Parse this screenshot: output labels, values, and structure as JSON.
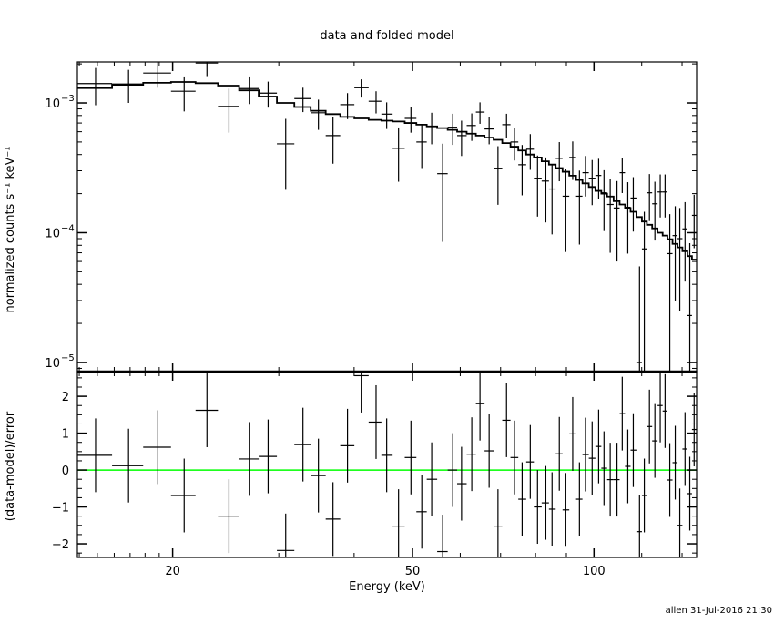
{
  "chart_data": {
    "type": "scatter",
    "title": "data and folded model",
    "xlabel": "Energy (keV)",
    "x_scale": "log",
    "xlim": [
      13.9,
      148
    ],
    "x_ticks": [
      20,
      50,
      100
    ],
    "x_tick_labels": [
      "20",
      "50",
      "100"
    ],
    "panels": [
      {
        "name": "spectrum",
        "ylabel": "normalized counts s⁻¹ keV⁻¹",
        "y_scale": "log",
        "ylim": [
          8.5e-06,
          0.00207
        ],
        "y_tick_labels": [
          {
            "v": 0.001,
            "base": "10",
            "exp": "−3"
          },
          {
            "v": 0.0001,
            "base": "10",
            "exp": "−4"
          },
          {
            "v": 1e-05,
            "base": "10",
            "exp": "−5"
          }
        ]
      },
      {
        "name": "residuals",
        "ylabel": "(data-model)/error",
        "y_scale": "linear",
        "ylim": [
          -2.37,
          2.67
        ],
        "y_ticks": [
          -2,
          -1,
          0,
          1,
          2
        ],
        "y_tick_labels": [
          "−2",
          "−1",
          "0",
          "1",
          "2"
        ],
        "zero_line_color": "#00ff00"
      }
    ],
    "energy": [
      14.9,
      16.9,
      18.9,
      20.9,
      22.8,
      24.8,
      26.8,
      28.8,
      30.8,
      32.9,
      34.9,
      36.9,
      39.0,
      41.1,
      43.5,
      45.3,
      47.4,
      49.7,
      51.8,
      53.8,
      56.1,
      58.3,
      60.3,
      62.7,
      64.7,
      67.0,
      69.3,
      71.6,
      73.8,
      76.0,
      78.4,
      80.6,
      83.2,
      85.2,
      87.6,
      89.8,
      92.2,
      94.6,
      96.8,
      99.3,
      101.8,
      103.9,
      106.4,
      109.2,
      111.4,
      113.8,
      116.2,
      119.0,
      121.2,
      123.6,
      126.2,
      128.8,
      131.2,
      133.6,
      136.4,
      138.8,
      141.6,
      144.2,
      146.6
    ],
    "data": [
      0.00141,
      0.0014,
      0.0017,
      0.00123,
      0.00203,
      0.00094,
      0.00129,
      0.00119,
      0.000484,
      0.00108,
      0.00084,
      0.00056,
      0.00097,
      0.00131,
      0.00103,
      0.00082,
      0.000447,
      0.00076,
      0.0005,
      0.00066,
      0.000285,
      0.00065,
      0.00056,
      0.00067,
      0.00085,
      0.00063,
      0.000314,
      0.00068,
      0.0005,
      0.000334,
      0.00044,
      0.000263,
      0.00025,
      0.000217,
      0.000374,
      0.000191,
      0.00038,
      0.000191,
      0.00029,
      0.000263,
      0.000276,
      0.000203,
      0.000165,
      0.000155,
      0.00029,
      0.000157,
      0.000185,
      1e-05,
      7.5e-05,
      0.000203,
      0.000167,
      0.000206,
      0.000206,
      6.9e-05,
      9.5e-05,
      9e-05,
      0.000107,
      2.3e-05,
      0.000136
    ],
    "data_err": [
      0.00045,
      0.0004,
      0.00039,
      0.00037,
      0.00042,
      0.00035,
      0.00031,
      0.00027,
      0.00027,
      0.00023,
      0.00022,
      0.00022,
      0.00022,
      0.00021,
      0.0002,
      0.00019,
      0.0002,
      0.00017,
      0.000185,
      0.00018,
      0.0002,
      0.000175,
      0.00017,
      0.00016,
      0.00016,
      0.00015,
      0.00015,
      0.000145,
      0.00014,
      0.00014,
      0.000135,
      0.00013,
      0.00013,
      0.00012,
      0.000125,
      0.00012,
      0.000125,
      0.00011,
      0.0001,
      0.0001,
      9.5e-05,
      0.0001,
      9.5e-05,
      9.5e-05,
      8.8e-05,
      8.8e-05,
      8.3e-05,
      4.5e-05,
      7e-05,
      8e-05,
      8e-05,
      7.5e-05,
      7.5e-05,
      7e-05,
      6.5e-05,
      6.5e-05,
      6.5e-05,
      6e-05,
      6e-05
    ],
    "model": [
      0.0013,
      0.00138,
      0.00143,
      0.00145,
      0.00142,
      0.00136,
      0.00125,
      0.00112,
      0.001,
      0.00093,
      0.00087,
      0.00082,
      0.00078,
      0.00076,
      0.00074,
      0.00073,
      0.00072,
      0.0007,
      0.00068,
      0.00066,
      0.00064,
      0.00062,
      0.0006,
      0.00058,
      0.00056,
      0.00054,
      0.00052,
      0.00049,
      0.00046,
      0.00043,
      0.0004,
      0.00038,
      0.000355,
      0.000335,
      0.000315,
      0.000295,
      0.000275,
      0.000255,
      0.00024,
      0.000225,
      0.00021,
      0.0002,
      0.00019,
      0.000175,
      0.000165,
      0.000155,
      0.000145,
      0.000132,
      0.000122,
      0.000115,
      0.000108,
      0.0001,
      9.5e-05,
      8.9e-05,
      8.2e-05,
      7.7e-05,
      7.2e-05,
      6.6e-05,
      6.2e-05
    ],
    "residual": [
      0.4,
      0.12,
      0.62,
      -0.69,
      1.62,
      -1.25,
      0.3,
      0.37,
      -2.18,
      0.69,
      -0.15,
      -1.33,
      0.66,
      2.56,
      1.3,
      0.4,
      -1.52,
      0.34,
      -1.13,
      -0.25,
      -2.21,
      0.0,
      -0.37,
      0.43,
      1.8,
      0.52,
      -1.52,
      1.35,
      0.34,
      -0.79,
      0.22,
      -1.0,
      -0.89,
      -1.06,
      0.44,
      -1.08,
      0.98,
      -0.79,
      0.42,
      0.32,
      0.64,
      0.05,
      -0.26,
      -0.26,
      1.53,
      0.1,
      0.54,
      -1.67,
      -0.69,
      1.18,
      0.79,
      1.75,
      1.6,
      -0.27,
      0.2,
      -1.5,
      0.57,
      -0.64,
      1.1
    ],
    "residual_err": 1.0
  },
  "footer": "allen 31-Jul-2016 21:30"
}
